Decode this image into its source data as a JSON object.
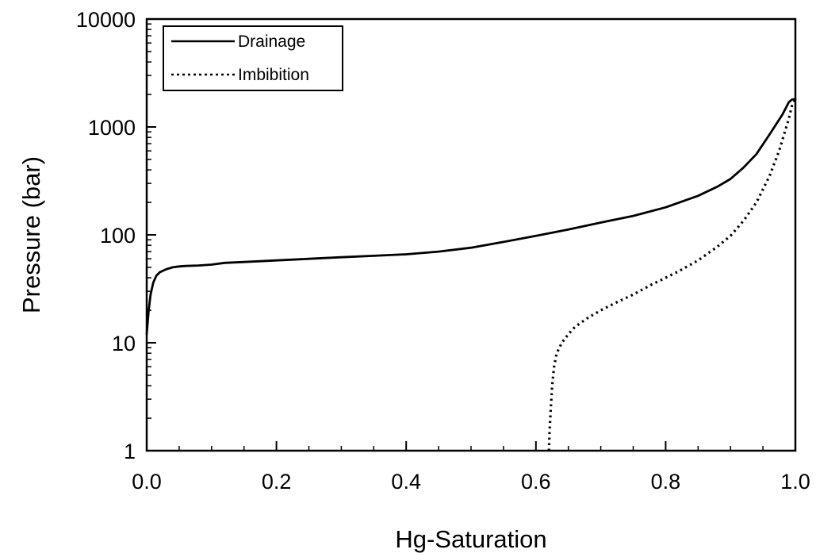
{
  "chart_data": {
    "type": "line",
    "title": "",
    "xlabel": "Hg-Saturation",
    "ylabel": "Pressure (bar)",
    "xlim": [
      0.0,
      1.0
    ],
    "ylim": [
      1,
      10000
    ],
    "yscale": "log",
    "x_ticks": [
      0.0,
      0.2,
      0.4,
      0.6,
      0.8,
      1.0
    ],
    "x_tick_labels": [
      "0.0",
      "0.2",
      "0.4",
      "0.6",
      "0.8",
      "1.0"
    ],
    "y_ticks": [
      1,
      10,
      100,
      1000,
      10000
    ],
    "y_tick_labels": [
      "1",
      "10",
      "100",
      "1000",
      "10000"
    ],
    "grid": false,
    "legend_position": "top-left",
    "series": [
      {
        "name": "Drainage",
        "style": "solid",
        "color": "#000000",
        "x": [
          0.0,
          0.003,
          0.006,
          0.01,
          0.015,
          0.02,
          0.03,
          0.04,
          0.05,
          0.06,
          0.08,
          0.1,
          0.12,
          0.15,
          0.2,
          0.25,
          0.3,
          0.35,
          0.4,
          0.45,
          0.5,
          0.55,
          0.6,
          0.65,
          0.7,
          0.75,
          0.8,
          0.85,
          0.88,
          0.9,
          0.92,
          0.94,
          0.96,
          0.98,
          0.99,
          0.995,
          1.0
        ],
        "y": [
          12,
          20,
          28,
          36,
          42,
          45,
          48,
          50,
          51,
          51.5,
          52,
          53,
          55,
          56,
          58,
          60,
          62,
          64,
          66,
          70,
          76,
          86,
          98,
          112,
          130,
          150,
          180,
          230,
          280,
          330,
          420,
          560,
          850,
          1300,
          1700,
          1800,
          1800
        ]
      },
      {
        "name": "Imbibition",
        "style": "dotted",
        "color": "#000000",
        "x": [
          0.62,
          0.621,
          0.623,
          0.625,
          0.628,
          0.632,
          0.64,
          0.65,
          0.66,
          0.68,
          0.7,
          0.72,
          0.75,
          0.78,
          0.8,
          0.82,
          0.85,
          0.88,
          0.9,
          0.92,
          0.94,
          0.96,
          0.975,
          0.99,
          0.995,
          1.0
        ],
        "y": [
          1,
          1.5,
          2.5,
          4,
          6,
          8,
          10,
          12,
          14,
          17,
          20,
          23,
          28,
          35,
          40,
          46,
          58,
          78,
          98,
          135,
          200,
          350,
          600,
          1200,
          1600,
          1800
        ]
      }
    ]
  }
}
